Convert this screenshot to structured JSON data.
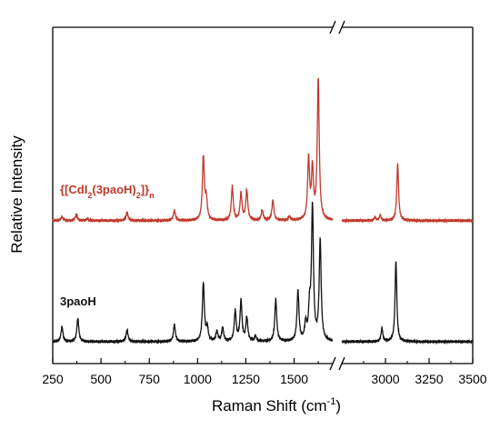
{
  "chart_data": {
    "type": "line",
    "title": "",
    "xlabel": {
      "base": "Raman Shift (cm",
      "sup": "-1",
      "end": ")"
    },
    "ylabel": "Relative Intensity",
    "x_segments": [
      {
        "range": [
          250,
          1700
        ]
      },
      {
        "range": [
          2750,
          3500
        ]
      }
    ],
    "x_ticks_left": [
      250,
      500,
      750,
      1000,
      1250,
      1500
    ],
    "x_ticks_right": [
      3000,
      3250,
      3500
    ],
    "y_range": [
      0,
      1
    ],
    "series": [
      {
        "label_parts": [
          {
            "t": "{[CdI"
          },
          {
            "t": "2",
            "sub": true
          },
          {
            "t": "(3paoH)"
          },
          {
            "t": "2",
            "sub": true
          },
          {
            "t": "]}"
          },
          {
            "t": "n",
            "sub": true
          }
        ],
        "color": "#c0392b",
        "baseline": 0.425,
        "peaks": [
          [
            298,
            0.012
          ],
          [
            372,
            0.018
          ],
          [
            430,
            0.006
          ],
          [
            635,
            0.025
          ],
          [
            880,
            0.03
          ],
          [
            1030,
            0.19
          ],
          [
            1045,
            0.06
          ],
          [
            1180,
            0.1
          ],
          [
            1225,
            0.08
          ],
          [
            1255,
            0.09
          ],
          [
            1335,
            0.03
          ],
          [
            1390,
            0.06
          ],
          [
            1475,
            0.012
          ],
          [
            1575,
            0.18
          ],
          [
            1595,
            0.15
          ],
          [
            1625,
            0.42
          ],
          [
            2940,
            0.01
          ],
          [
            2970,
            0.015
          ],
          [
            3070,
            0.17
          ]
        ]
      },
      {
        "label_parts": [
          {
            "t": "3paoH"
          }
        ],
        "color": "#111111",
        "baseline": 0.065,
        "peaks": [
          [
            298,
            0.045
          ],
          [
            380,
            0.07
          ],
          [
            635,
            0.035
          ],
          [
            880,
            0.05
          ],
          [
            1030,
            0.175
          ],
          [
            1050,
            0.04
          ],
          [
            1100,
            0.03
          ],
          [
            1130,
            0.04
          ],
          [
            1195,
            0.09
          ],
          [
            1225,
            0.12
          ],
          [
            1255,
            0.07
          ],
          [
            1300,
            0.015
          ],
          [
            1405,
            0.125
          ],
          [
            1520,
            0.15
          ],
          [
            1560,
            0.05
          ],
          [
            1580,
            0.09
          ],
          [
            1595,
            0.4
          ],
          [
            1635,
            0.3
          ],
          [
            2980,
            0.04
          ],
          [
            3060,
            0.24
          ]
        ]
      }
    ],
    "grid": false,
    "legend": "none"
  }
}
